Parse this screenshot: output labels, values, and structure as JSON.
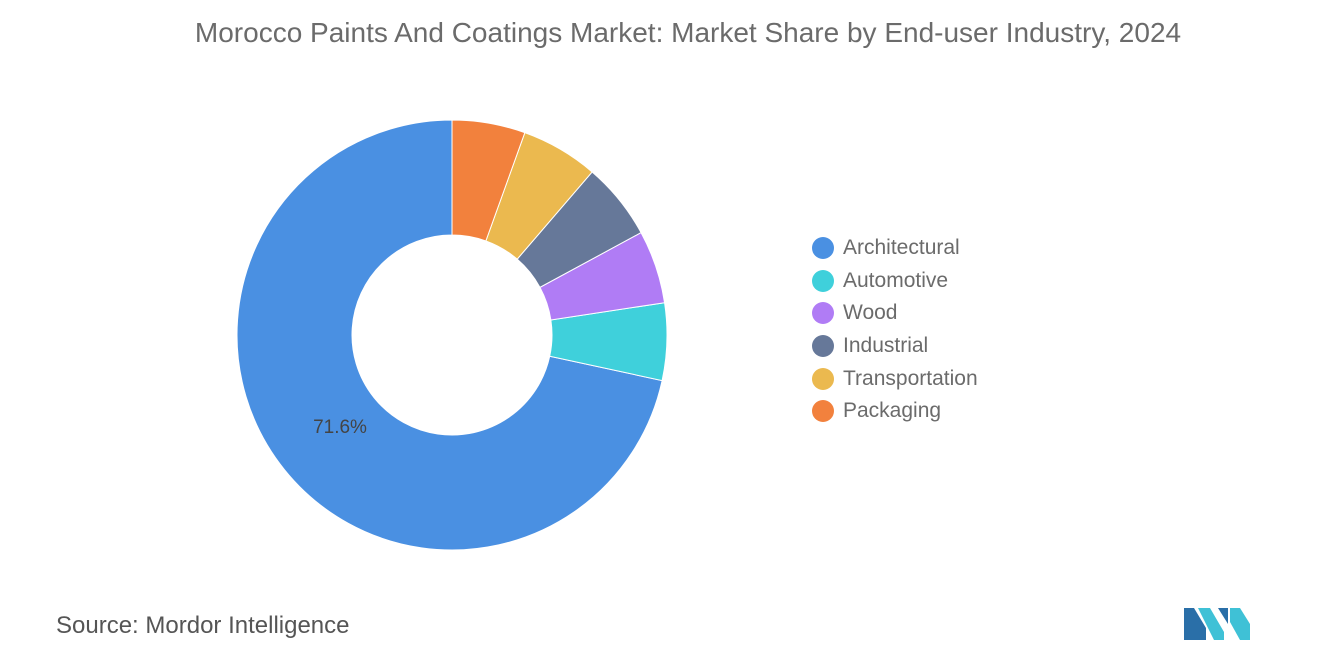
{
  "chart_data": {
    "type": "pie",
    "donut": true,
    "title": "Morocco Paints And Coatings Market: Market Share by End-user Industry, 2024",
    "categories": [
      "Architectural",
      "Automotive",
      "Wood",
      "Industrial",
      "Transportation",
      "Packaging"
    ],
    "values": [
      71.6,
      5.8,
      5.5,
      5.8,
      5.8,
      5.5
    ],
    "unit": "%",
    "colors": [
      "#4a90e2",
      "#3fd0db",
      "#b07cf5",
      "#667899",
      "#ebb94f",
      "#f2813d"
    ],
    "data_labels": [
      {
        "category": "Architectural",
        "text": "71.6%"
      }
    ],
    "legend_position": "right"
  },
  "source": {
    "label": "Source:",
    "text": "Mordor Intelligence"
  },
  "logo": {
    "text": "Mordor Intelligence logo"
  }
}
